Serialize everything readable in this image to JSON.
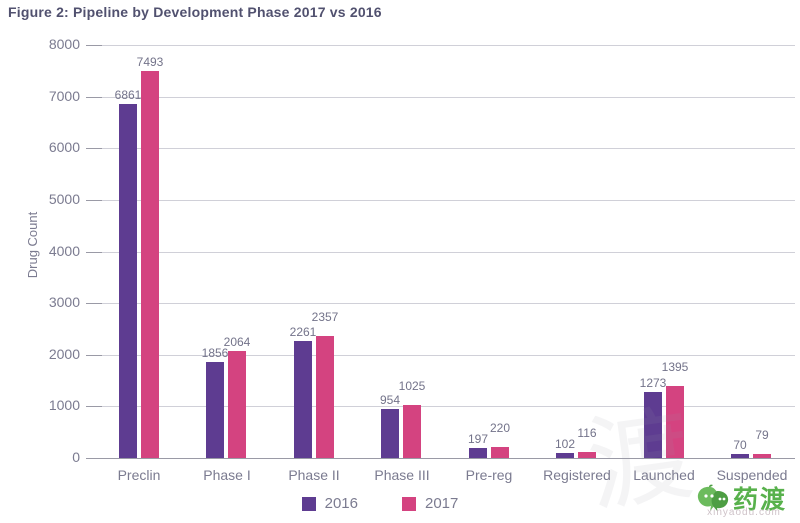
{
  "title": "Figure 2: Pipeline by Development Phase 2017 vs 2016",
  "chart_data": {
    "type": "bar",
    "title": "Figure 2: Pipeline by Development Phase 2017 vs 2016",
    "categories": [
      "Preclin",
      "Phase I",
      "Phase II",
      "Phase III",
      "Pre-reg",
      "Registered",
      "Launched",
      "Suspended"
    ],
    "series": [
      {
        "name": "2016",
        "color": "#5e3c91",
        "values": [
          6861,
          1856,
          2261,
          954,
          197,
          102,
          1273,
          70
        ]
      },
      {
        "name": "2017",
        "color": "#d44380",
        "values": [
          7493,
          2064,
          2357,
          1025,
          220,
          116,
          1395,
          79
        ]
      }
    ],
    "xlabel": "",
    "ylabel": "Drug Count",
    "ylim": [
      0,
      8000
    ],
    "ytick_step": 1000,
    "grid": true,
    "legend_position": "bottom",
    "data_labels": true
  },
  "colors": {
    "title": "#51516f",
    "axis_text": "#7b7b90",
    "value_label_text": "#73738a",
    "gridline": "#d0d0d8",
    "axis_line": "#9a9aa6",
    "watermark_green": "#58b14c"
  },
  "watermark": {
    "brand_text": "药渡",
    "subtext": "xinyaodu.com",
    "background_glyph": "渡"
  }
}
